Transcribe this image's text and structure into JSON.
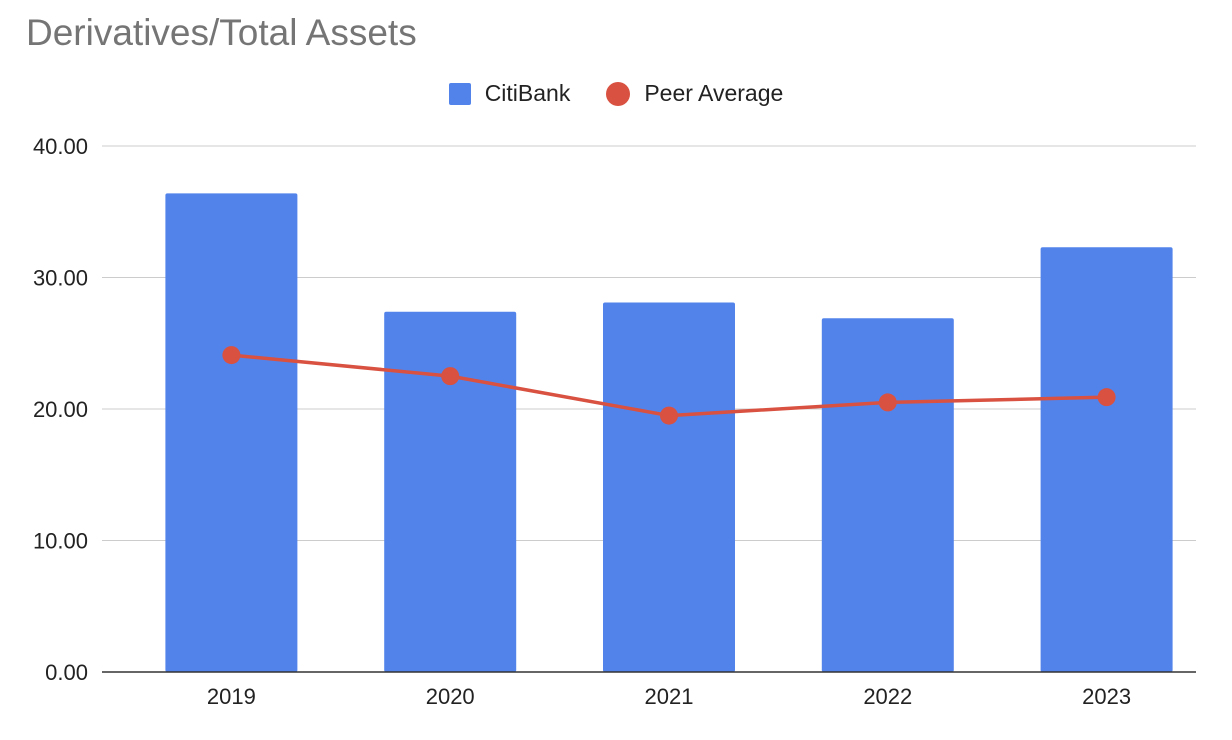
{
  "chart_data": {
    "type": "bar",
    "title": "Derivatives/Total Assets",
    "categories": [
      "2019",
      "2020",
      "2021",
      "2022",
      "2023"
    ],
    "series": [
      {
        "name": "CitiBank",
        "kind": "bar",
        "color": "#5283EB",
        "values": [
          36.4,
          27.4,
          28.1,
          26.9,
          32.3
        ]
      },
      {
        "name": "Peer Average",
        "kind": "line",
        "color": "#D95140",
        "values": [
          24.1,
          22.5,
          19.5,
          20.5,
          20.9
        ]
      }
    ],
    "ylim": [
      0,
      40
    ],
    "yticks": [
      "0.00",
      "10.00",
      "20.00",
      "30.00",
      "40.00"
    ],
    "grid": true,
    "legend_position": "top-center",
    "xlabel": "",
    "ylabel": ""
  }
}
